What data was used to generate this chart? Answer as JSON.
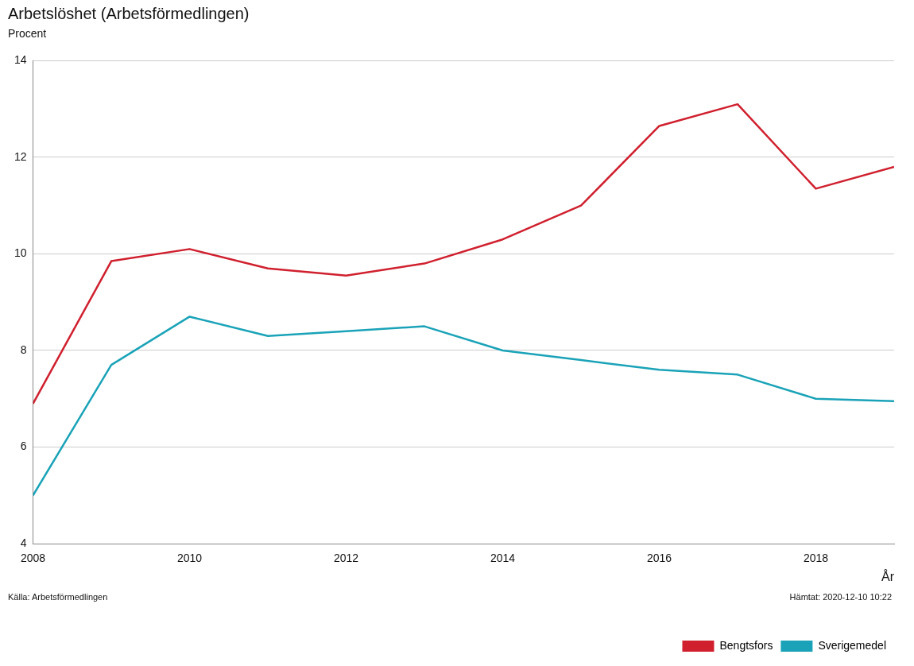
{
  "chart_data": {
    "type": "line",
    "title": "Arbetslöshet (Arbetsförmedlingen)",
    "ylabel": "Procent",
    "xlabel": "År",
    "x": [
      2008,
      2009,
      2010,
      2011,
      2012,
      2013,
      2014,
      2015,
      2016,
      2017,
      2018,
      2019
    ],
    "series": [
      {
        "name": "Bengtsfors",
        "color": "#d0202e",
        "values": [
          6.9,
          9.85,
          10.1,
          9.7,
          9.55,
          9.8,
          10.3,
          11.0,
          12.65,
          13.1,
          11.35,
          11.8
        ]
      },
      {
        "name": "Sverigemedel",
        "color": "#1aa3b8",
        "values": [
          5.0,
          7.7,
          8.7,
          8.3,
          8.4,
          8.5,
          8.0,
          7.8,
          7.6,
          7.5,
          7.0,
          6.95
        ]
      }
    ],
    "xlim": [
      2008,
      2019
    ],
    "xticks": [
      2008,
      2010,
      2012,
      2014,
      2016,
      2018
    ],
    "ylim": [
      4,
      14
    ],
    "yticks": [
      4,
      6,
      8,
      10,
      12,
      14
    ],
    "grid": "y",
    "legend": "bottom right",
    "marker": "none",
    "line_style": "solid",
    "annotations": [
      "Källa: Arbetsförmedlingen",
      "Hämtat: 2020-12-10 10:22"
    ]
  }
}
